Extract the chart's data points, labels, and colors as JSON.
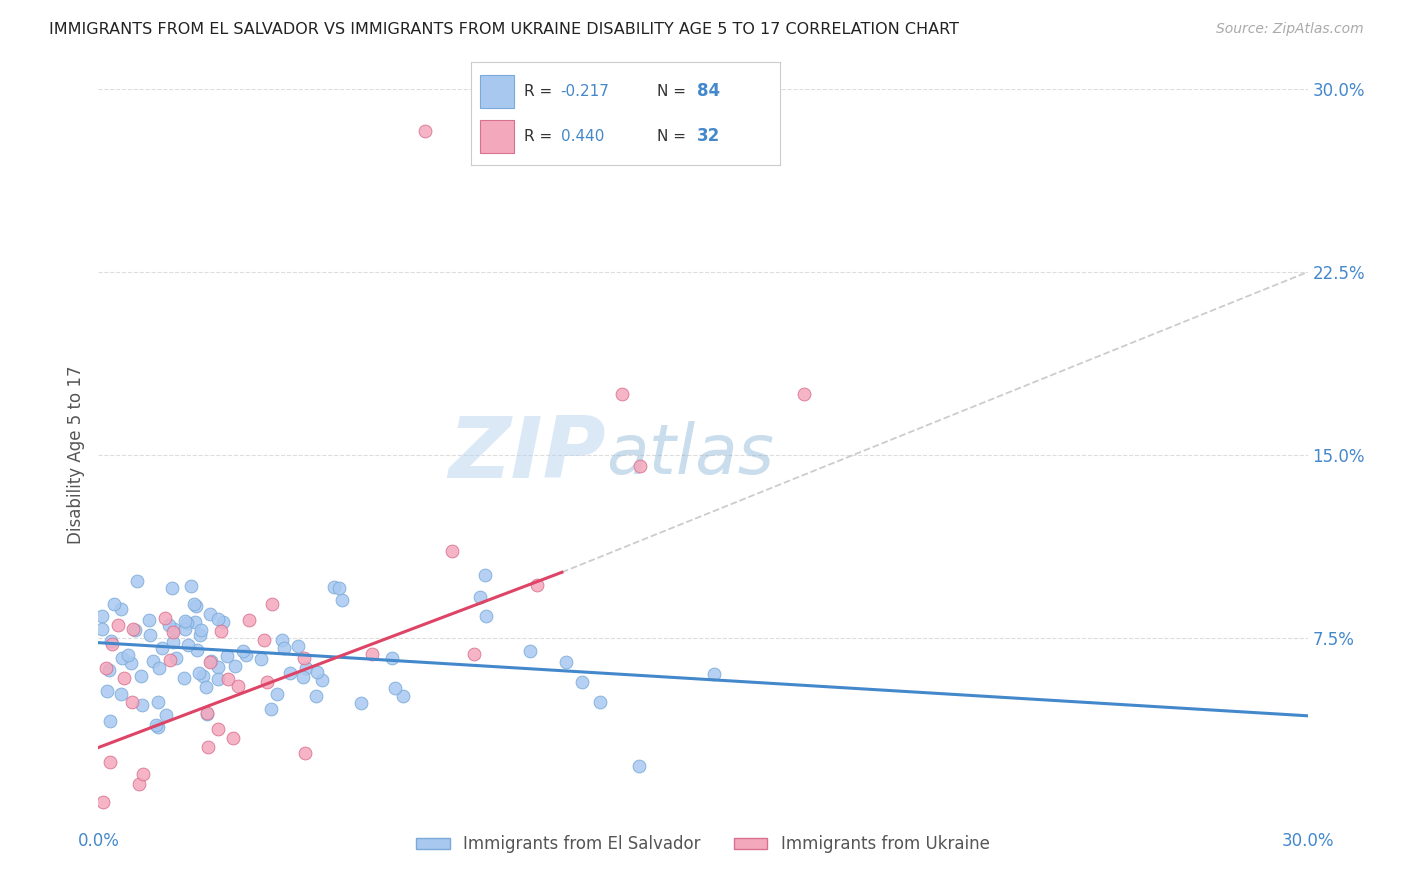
{
  "title": "IMMIGRANTS FROM EL SALVADOR VS IMMIGRANTS FROM UKRAINE DISABILITY AGE 5 TO 17 CORRELATION CHART",
  "source": "Source: ZipAtlas.com",
  "ylabel": "Disability Age 5 to 17",
  "x_min": 0.0,
  "x_max": 0.3,
  "y_min": 0.0,
  "y_max": 0.3,
  "y_ticks": [
    0.075,
    0.15,
    0.225,
    0.3
  ],
  "y_tick_labels": [
    "7.5%",
    "15.0%",
    "22.5%",
    "30.0%"
  ],
  "el_salvador_color": "#a8c8f0",
  "ukraine_color": "#f4a8bc",
  "el_salvador_edge": "#7aaad8",
  "ukraine_edge": "#d87090",
  "trend_el_salvador": "#4488cc",
  "trend_ukraine": "#dd4466",
  "trend_dashed_color": "#c0c0c0",
  "R_el_salvador": -0.217,
  "N_el_salvador": 84,
  "R_ukraine": 0.44,
  "N_ukraine": 32,
  "legend_label_1": "Immigrants from El Salvador",
  "legend_label_2": "Immigrants from Ukraine",
  "watermark_zip": "ZIP",
  "watermark_atlas": "atlas",
  "background_color": "#ffffff",
  "grid_color": "#dddddd",
  "title_color": "#222222",
  "axis_label_color": "#555555",
  "tick_color": "#4488cc",
  "seed": 7
}
